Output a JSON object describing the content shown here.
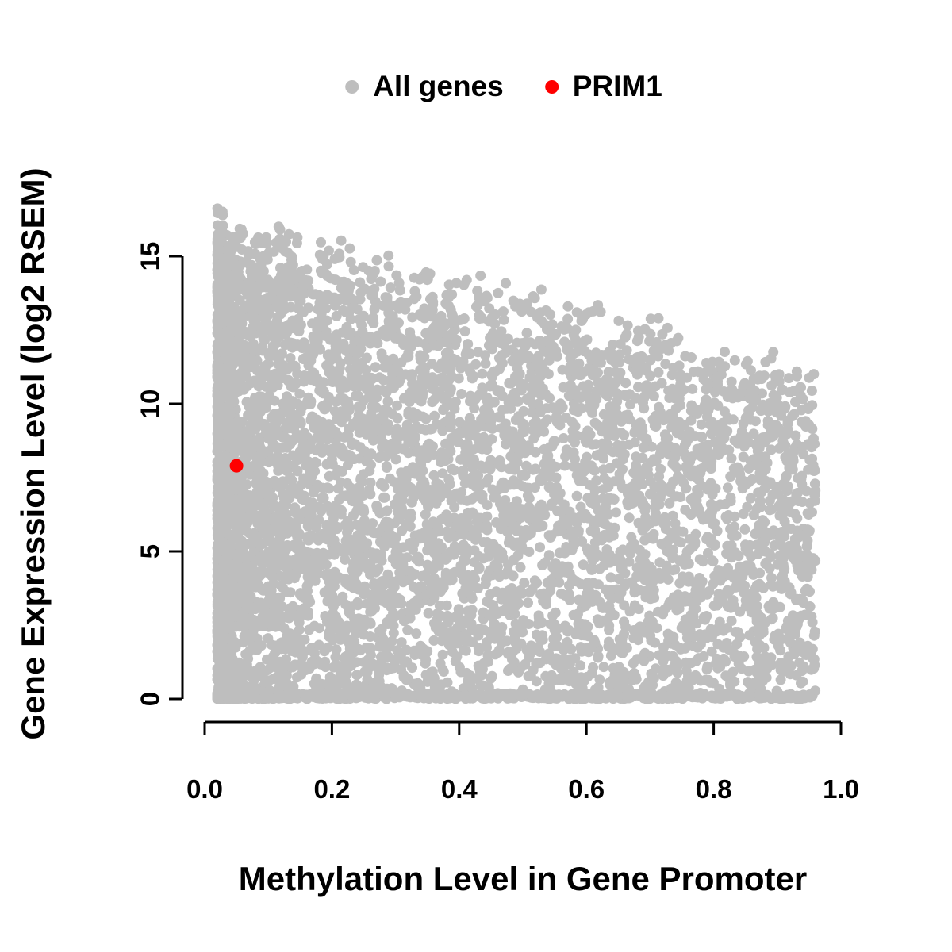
{
  "figure": {
    "background": "#ffffff"
  },
  "legend": {
    "position": "top-center",
    "entries": [
      {
        "label": "All genes",
        "color": "#bebebe"
      },
      {
        "label": "PRIM1",
        "color": "#ff0000"
      }
    ]
  },
  "axes": {
    "x": {
      "label": "Methylation Level in Gene Promoter",
      "tick_labels": [
        "0.0",
        "0.2",
        "0.4",
        "0.6",
        "0.8",
        "1.0"
      ],
      "tick_values": [
        0.0,
        0.2,
        0.4,
        0.6,
        0.8,
        1.0
      ],
      "range": [
        0.0,
        1.0
      ]
    },
    "y": {
      "label": "Gene Expression Level (log2 RSEM)",
      "tick_labels": [
        "0",
        "5",
        "10",
        "15"
      ],
      "tick_values": [
        0,
        5,
        10,
        15
      ],
      "range": [
        0,
        15
      ]
    }
  },
  "chart_data": {
    "type": "scatter",
    "title": "",
    "xlabel": "Methylation Level in Gene Promoter",
    "ylabel": "Gene Expression Level (log2 RSEM)",
    "xlim": [
      0.0,
      1.0
    ],
    "ylim": [
      0,
      17
    ],
    "x_ticks": [
      0.0,
      0.2,
      0.4,
      0.6,
      0.8,
      1.0
    ],
    "y_ticks": [
      0,
      5,
      10,
      15
    ],
    "grid": false,
    "legend_position": "top-center",
    "series": [
      {
        "name": "All genes",
        "color": "#bebebe",
        "marker": "filled-circle",
        "kind": "dense_cloud",
        "n_points": 6500,
        "x_range": [
          0.02,
          0.96
        ],
        "y_range": [
          0,
          16.8
        ],
        "upper_envelope": {
          "intercept": 16.8,
          "slope": -5.2
        },
        "x_mixture": {
          "uniform_fraction": 0.35,
          "left_power": 2.2
        },
        "zero_fraction": 0.12,
        "seed": 12345
      },
      {
        "name": "PRIM1",
        "color": "#ff0000",
        "marker": "filled-circle",
        "points": [
          [
            0.05,
            7.9
          ]
        ]
      }
    ]
  }
}
